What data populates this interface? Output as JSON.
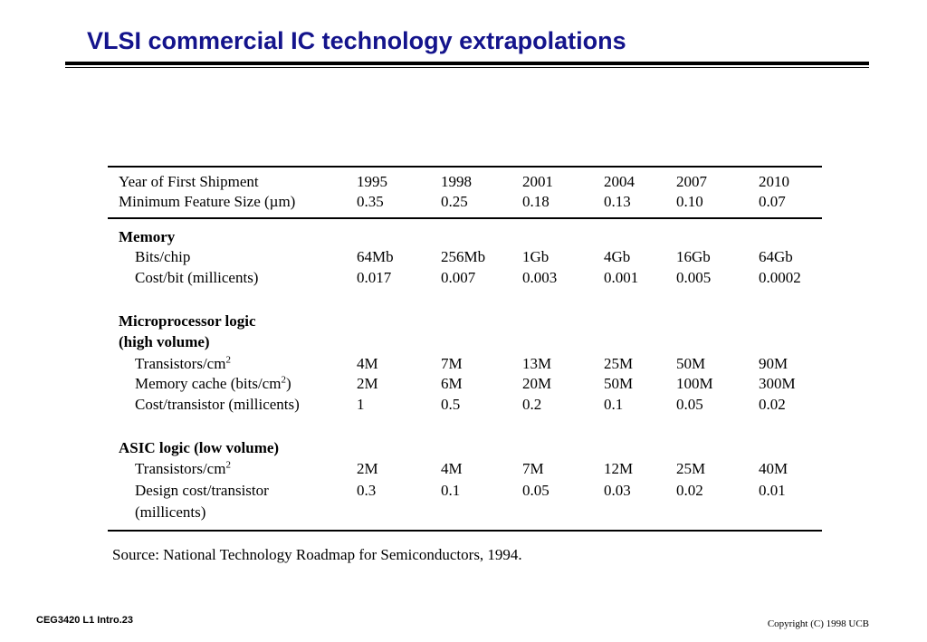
{
  "title": "VLSI commercial IC technology extrapolations",
  "table": {
    "header": {
      "year_label": "Year of First Shipment",
      "years": [
        "1995",
        "1998",
        "2001",
        "2004",
        "2007",
        "2010"
      ],
      "feature_label": "Minimum Feature Size (µm)",
      "features": [
        "0.35",
        "0.25",
        "0.18",
        "0.13",
        "0.10",
        "0.07"
      ]
    },
    "memory": {
      "heading": "Memory",
      "bits_label": "Bits/chip",
      "bits": [
        "64Mb",
        "256Mb",
        "1Gb",
        "4Gb",
        "16Gb",
        "64Gb"
      ],
      "cost_label": "Cost/bit (millicents)",
      "cost": [
        "0.017",
        "0.007",
        "0.003",
        "0.001",
        "0.005",
        "0.0002"
      ]
    },
    "micro": {
      "heading_line1": "Microprocessor logic",
      "heading_line2": "(high volume)",
      "transistors_label": "Transistors/cm",
      "transistors_sup": "2",
      "transistors": [
        "4M",
        "7M",
        "13M",
        "25M",
        "50M",
        "90M"
      ],
      "cache_label_pre": "Memory cache (bits/cm",
      "cache_label_sup": "2",
      "cache_label_post": ")",
      "cache": [
        "2M",
        "6M",
        "20M",
        "50M",
        "100M",
        "300M"
      ],
      "cost_label": "Cost/transistor (millicents)",
      "cost": [
        "1",
        "0.5",
        "0.2",
        "0.1",
        "0.05",
        "0.02"
      ]
    },
    "asic": {
      "heading": "ASIC logic (low volume)",
      "transistors_label": "Transistors/cm",
      "transistors_sup": "2",
      "transistors": [
        "2M",
        "4M",
        "7M",
        "12M",
        "25M",
        "40M"
      ],
      "design_label_line1": "Design cost/transistor",
      "design_label_line2": "(millicents)",
      "design": [
        "0.3",
        "0.1",
        "0.05",
        "0.03",
        "0.02",
        "0.01"
      ]
    }
  },
  "source": "Source:  National Technology Roadmap for Semiconductors, 1994.",
  "footer": {
    "left": "CEG3420  L1 Intro.23",
    "right": "Copyright (C) 1998 UCB"
  }
}
